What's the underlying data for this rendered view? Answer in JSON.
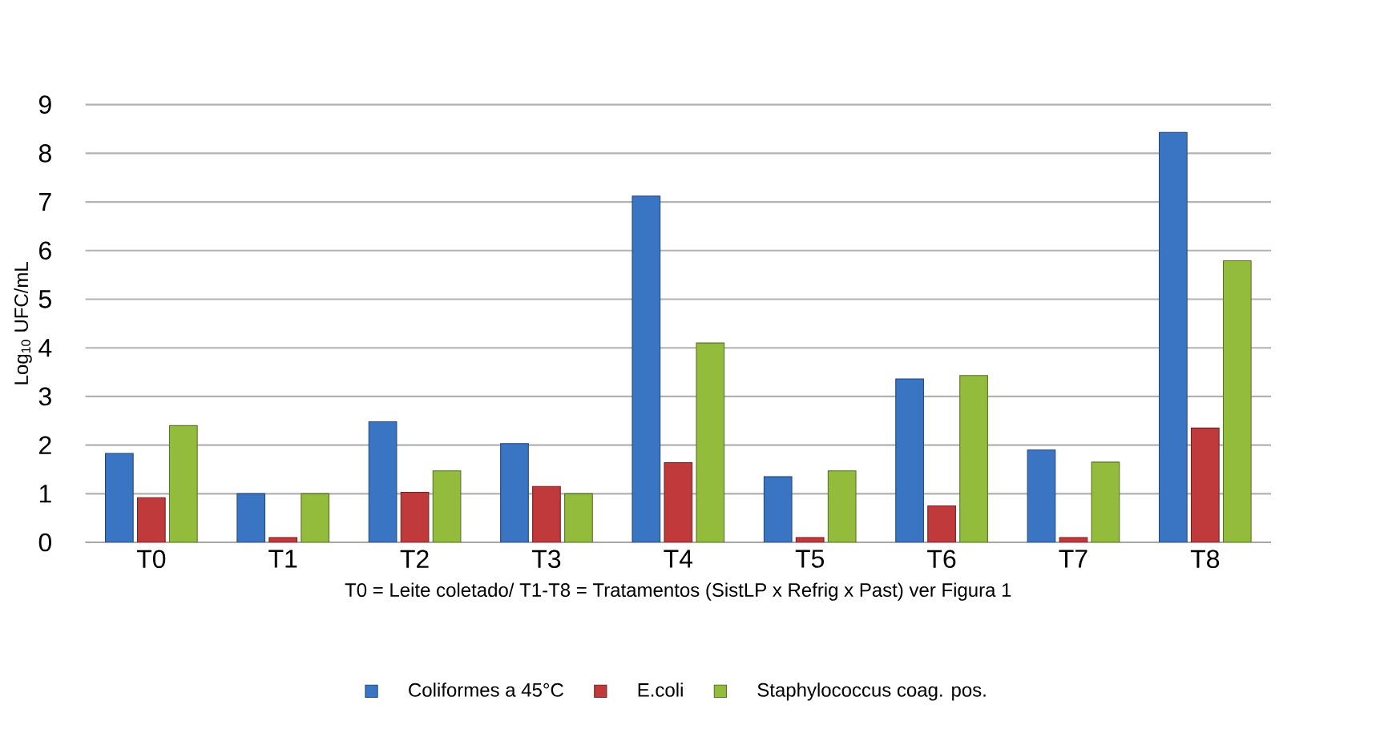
{
  "chart_data": {
    "type": "bar",
    "xlabel": "T0 = Leite coletado/ T1-T8 = Tratamentos (SistLP x Refrig x Past) ver Figura 1",
    "ylabel": "Log$_{10}$ UFC/mL",
    "categories": [
      "T0",
      "T1",
      "T2",
      "T3",
      "T4",
      "T5",
      "T6",
      "T7",
      "T8"
    ],
    "series": [
      {
        "name": "Coliformes a 45°C",
        "color": "#3a75c4",
        "values": [
          1.83,
          1.0,
          2.48,
          2.03,
          7.12,
          1.35,
          3.36,
          1.9,
          8.43
        ]
      },
      {
        "name": "E.coli",
        "color": "#c0393b",
        "values": [
          0.92,
          0.1,
          1.03,
          1.15,
          1.64,
          0.1,
          0.75,
          0.1,
          2.35
        ]
      },
      {
        "name": "Staphylococcus coag. pos.",
        "color": "#93bb3c",
        "values": [
          2.4,
          1.0,
          1.47,
          1.0,
          4.1,
          1.47,
          3.43,
          1.65,
          5.79
        ]
      }
    ],
    "ylim": [
      0,
      9
    ],
    "yticks": [
      0,
      1,
      2,
      3,
      4,
      5,
      6,
      7,
      8,
      9
    ],
    "grid": "y",
    "legend": "bottom"
  }
}
